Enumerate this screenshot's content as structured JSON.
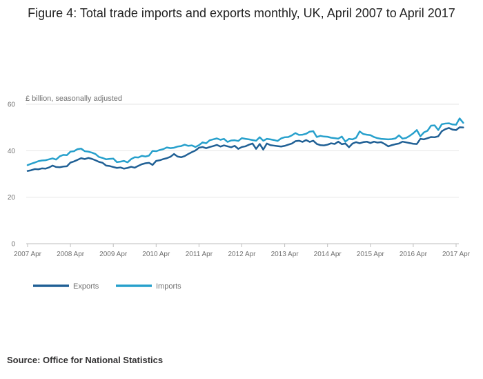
{
  "title": "Figure 4: Total trade imports and exports monthly, UK, April 2007 to April 2017",
  "source": "Source: Office for National Statistics",
  "colors": {
    "exports": "#206095",
    "imports": "#27a0cc",
    "grid": "#e6e6e6",
    "axis": "#bdbdbd"
  },
  "chart_data": {
    "type": "line",
    "title": "Figure 4: Total trade imports and exports monthly, UK, April 2007 to April 2017",
    "ylabel": "£ billion, seasonally adjusted",
    "xlabel": "",
    "ylim": [
      0,
      60
    ],
    "yticks": [
      0,
      20,
      40,
      60
    ],
    "xticks": [
      "2007 Apr",
      "2008 Apr",
      "2009 Apr",
      "2010 Apr",
      "2011 Apr",
      "2012 Apr",
      "2013 Apr",
      "2014 Apr",
      "2015 Apr",
      "2016 Apr",
      "2017 Apr"
    ],
    "grid": true,
    "legend_position": "bottom-left",
    "x_start": "2007 Apr",
    "frequency": "monthly",
    "series": [
      {
        "name": "Exports",
        "values": [
          31.3,
          31.6,
          32.1,
          32.0,
          32.4,
          32.3,
          32.8,
          33.6,
          33.0,
          32.9,
          33.2,
          33.3,
          34.9,
          35.4,
          36.1,
          36.8,
          36.4,
          36.9,
          36.5,
          35.9,
          35.2,
          34.8,
          33.6,
          33.4,
          33.0,
          32.6,
          32.8,
          32.3,
          32.6,
          33.1,
          32.7,
          33.5,
          34.2,
          34.6,
          34.8,
          33.9,
          35.6,
          35.9,
          36.4,
          36.8,
          37.4,
          38.6,
          37.5,
          37.2,
          37.7,
          38.6,
          39.4,
          40.1,
          41.3,
          41.6,
          41.1,
          41.6,
          42.0,
          42.5,
          41.8,
          42.3,
          41.9,
          41.5,
          42.1,
          40.8,
          41.6,
          41.9,
          42.6,
          43.1,
          40.8,
          42.9,
          40.5,
          43.1,
          42.4,
          42.2,
          42.0,
          41.8,
          42.1,
          42.6,
          43.1,
          44.1,
          44.3,
          43.8,
          44.6,
          43.8,
          44.3,
          42.9,
          42.4,
          42.3,
          42.6,
          43.2,
          42.9,
          43.9,
          42.8,
          43.1,
          41.5,
          43.1,
          43.7,
          43.2,
          43.7,
          43.9,
          43.3,
          43.9,
          43.5,
          43.7,
          42.9,
          41.9,
          42.4,
          42.8,
          43.1,
          43.9,
          43.6,
          43.3,
          43.0,
          42.9,
          45.1,
          44.9,
          45.4,
          45.9,
          45.8,
          46.2,
          48.4,
          49.3,
          49.8,
          49.1,
          48.9,
          50.1,
          50.0
        ]
      },
      {
        "name": "Imports",
        "values": [
          33.8,
          34.4,
          34.9,
          35.5,
          35.8,
          35.9,
          36.3,
          36.7,
          36.2,
          37.6,
          38.2,
          38.1,
          39.6,
          39.8,
          40.7,
          40.9,
          39.8,
          39.6,
          39.2,
          38.6,
          37.3,
          36.9,
          36.3,
          36.5,
          36.6,
          35.1,
          35.3,
          35.6,
          35.0,
          36.4,
          37.2,
          37.1,
          37.8,
          37.5,
          37.9,
          39.9,
          39.8,
          40.3,
          40.7,
          41.4,
          41.1,
          41.3,
          41.8,
          42.0,
          42.6,
          42.1,
          42.3,
          41.6,
          42.4,
          43.6,
          43.2,
          44.5,
          44.9,
          45.3,
          44.7,
          45.1,
          43.8,
          44.4,
          44.5,
          44.2,
          45.4,
          45.1,
          44.9,
          44.6,
          44.3,
          45.8,
          44.3,
          45.1,
          44.9,
          44.6,
          44.2,
          45.3,
          45.8,
          45.9,
          46.6,
          47.6,
          46.8,
          46.9,
          47.3,
          48.2,
          48.4,
          45.9,
          46.4,
          46.1,
          46.0,
          45.6,
          45.4,
          45.2,
          46.1,
          43.9,
          45.1,
          44.9,
          45.6,
          48.3,
          47.2,
          46.9,
          46.7,
          45.9,
          45.4,
          45.1,
          45.0,
          44.9,
          45.0,
          45.3,
          46.6,
          45.2,
          45.5,
          46.4,
          47.5,
          48.9,
          46.2,
          47.9,
          48.6,
          50.8,
          50.9,
          48.9,
          51.4,
          51.7,
          51.8,
          51.3,
          51.2,
          53.9,
          52.0
        ]
      }
    ]
  }
}
